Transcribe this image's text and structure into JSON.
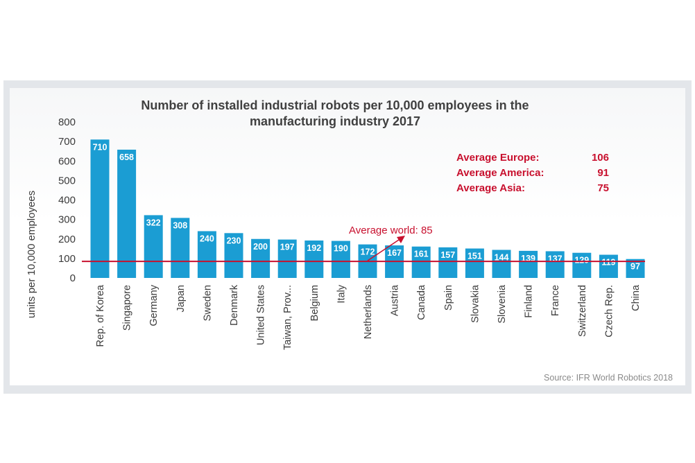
{
  "chart_data": {
    "type": "bar",
    "title_lines": [
      "Number of installed industrial robots per 10,000 employees in the",
      "manufacturing industry 2017"
    ],
    "ylabel": "units per 10,000 employees",
    "xlabel": "",
    "ylim": [
      0,
      800
    ],
    "yticks": [
      "0",
      "100",
      "200",
      "300",
      "400",
      "500",
      "600",
      "700",
      "800"
    ],
    "grid": false,
    "bar_color": "#1b9dd3",
    "categories": [
      "Rep. of Korea",
      "Singapore",
      "Germany",
      "Japan",
      "Sweden",
      "Denmark",
      "United States",
      "Taiwan, Prov...",
      "Belgium",
      "Italy",
      "Netherlands",
      "Austria",
      "Canada",
      "Spain",
      "Slovakia",
      "Slovenia",
      "Finland",
      "France",
      "Switzerland",
      "Czech Rep.",
      "China"
    ],
    "values": [
      710,
      658,
      322,
      308,
      240,
      230,
      200,
      197,
      192,
      190,
      172,
      167,
      161,
      157,
      151,
      144,
      139,
      137,
      129,
      119,
      97
    ],
    "value_labels": [
      "710",
      "658",
      "322",
      "308",
      "240",
      "230",
      "200",
      "197",
      "192",
      "190",
      "172",
      "167",
      "161",
      "157",
      "151",
      "144",
      "139",
      "137",
      "129",
      "119",
      "97"
    ],
    "reference_line": {
      "value": 85,
      "label": "Average world: 85",
      "color": "#c8102e"
    },
    "averages": [
      {
        "label": "Average Europe:",
        "value": "106"
      },
      {
        "label": "Average America:",
        "value": "91"
      },
      {
        "label": "Average Asia:",
        "value": "75"
      }
    ],
    "annotation_color": "#c8102e",
    "source": "Source: IFR World Robotics 2018"
  }
}
